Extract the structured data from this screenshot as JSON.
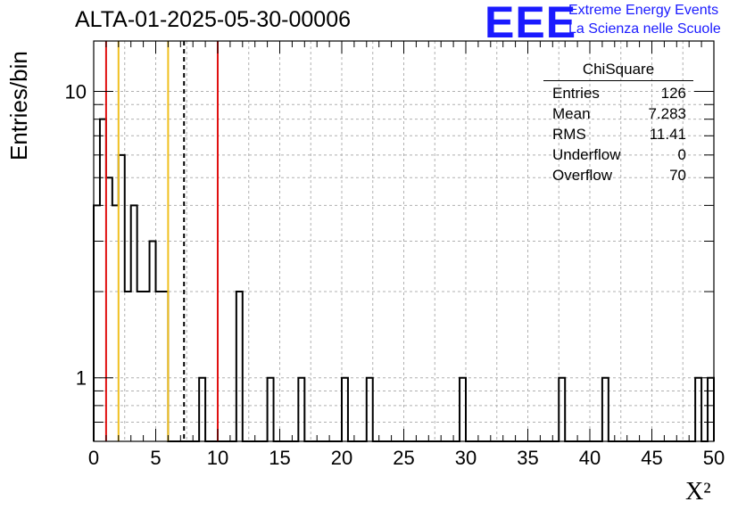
{
  "title": "ALTA-01-2025-05-30-00006",
  "logo": {
    "mark": "EEE",
    "line1": "Extreme Energy Events",
    "line2": "La Scienza nelle Scuole"
  },
  "stats": {
    "title": "ChiSquare",
    "rows": [
      {
        "label": "Entries",
        "value": "126"
      },
      {
        "label": "Mean",
        "value": "7.283"
      },
      {
        "label": "RMS",
        "value": "11.41"
      },
      {
        "label": "Underflow",
        "value": "0"
      },
      {
        "label": "Overflow",
        "value": "70"
      }
    ]
  },
  "colors": {
    "red_line": "#e01010",
    "yellow_line": "#f0c020",
    "grid": "#b0b0b0",
    "histogram": "#000000"
  },
  "chart_data": {
    "type": "bar",
    "style": "step-histogram",
    "xlabel": "X²",
    "ylabel": "Entries/bin",
    "xlim": [
      0,
      50
    ],
    "ylim": [
      0.6,
      15
    ],
    "yscale": "log",
    "grid": true,
    "bin_width": 0.5,
    "x_ticks": [
      "0",
      "5",
      "10",
      "15",
      "20",
      "25",
      "30",
      "35",
      "40",
      "45",
      "50"
    ],
    "y_ticks": [
      {
        "value": 1,
        "label": "1"
      },
      {
        "value": 10,
        "label": "10"
      }
    ],
    "bins": [
      {
        "x": 0.0,
        "count": 4
      },
      {
        "x": 0.5,
        "count": 8
      },
      {
        "x": 1.0,
        "count": 5
      },
      {
        "x": 1.5,
        "count": 4
      },
      {
        "x": 2.0,
        "count": 6
      },
      {
        "x": 2.5,
        "count": 2
      },
      {
        "x": 3.0,
        "count": 4
      },
      {
        "x": 3.5,
        "count": 2
      },
      {
        "x": 4.0,
        "count": 2
      },
      {
        "x": 4.5,
        "count": 3
      },
      {
        "x": 5.0,
        "count": 2
      },
      {
        "x": 5.5,
        "count": 2
      },
      {
        "x": 8.5,
        "count": 1
      },
      {
        "x": 11.5,
        "count": 2
      },
      {
        "x": 14.0,
        "count": 1
      },
      {
        "x": 16.5,
        "count": 1
      },
      {
        "x": 20.0,
        "count": 1
      },
      {
        "x": 22.0,
        "count": 1
      },
      {
        "x": 29.5,
        "count": 1
      },
      {
        "x": 37.5,
        "count": 1
      },
      {
        "x": 41.0,
        "count": 1
      },
      {
        "x": 48.5,
        "count": 1
      },
      {
        "x": 49.5,
        "count": 1
      }
    ],
    "reference_lines": [
      {
        "x": 1.0,
        "color": "#e01010",
        "style": "solid"
      },
      {
        "x": 2.0,
        "color": "#f0c020",
        "style": "solid"
      },
      {
        "x": 6.0,
        "color": "#f0c020",
        "style": "solid"
      },
      {
        "x": 7.283,
        "color": "#000000",
        "style": "dashed"
      },
      {
        "x": 10.0,
        "color": "#e01010",
        "style": "solid"
      }
    ]
  }
}
